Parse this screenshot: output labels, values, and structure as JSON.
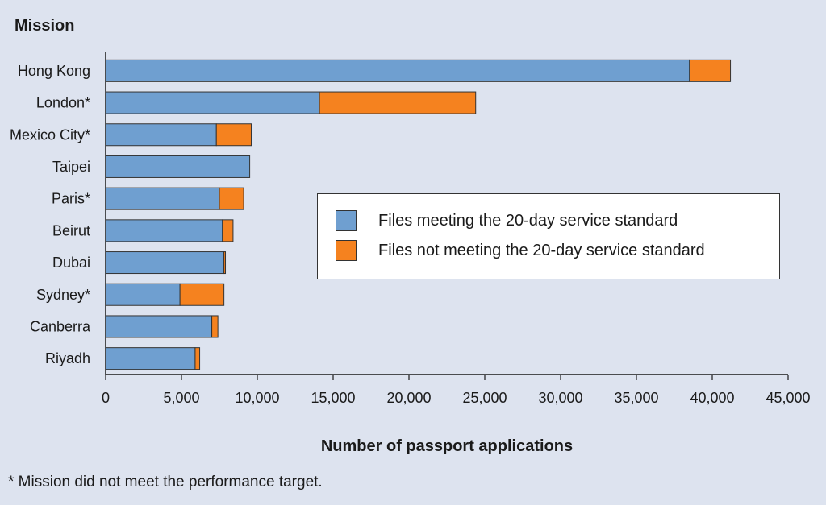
{
  "chart_data": {
    "type": "bar",
    "orientation": "horizontal",
    "stacked": true,
    "ylabel": "Mission",
    "xlabel": "Number of passport applications",
    "xlim": [
      0,
      45000
    ],
    "xticks": [
      0,
      5000,
      10000,
      15000,
      20000,
      25000,
      30000,
      35000,
      40000,
      45000
    ],
    "xtick_labels": [
      "0",
      "5,000",
      "10,000",
      "15,000",
      "20,000",
      "25,000",
      "30,000",
      "35,000",
      "40,000",
      "45,000"
    ],
    "categories": [
      "Hong Kong",
      "London*",
      "Mexico City*",
      "Taipei",
      "Paris*",
      "Beirut",
      "Dubai",
      "Sydney*",
      "Canberra",
      "Riyadh"
    ],
    "series": [
      {
        "name": "Files meeting the 20-day service standard",
        "color": "#6f9fd0",
        "values": [
          38500,
          14100,
          7300,
          9500,
          7500,
          7700,
          7800,
          4900,
          7000,
          5900
        ]
      },
      {
        "name": "Files not meeting the 20-day service standard",
        "color": "#f5821f",
        "values": [
          2700,
          10300,
          2300,
          0,
          1600,
          700,
          100,
          2900,
          400,
          300
        ]
      }
    ],
    "grid": false,
    "legend_position": "right-center"
  },
  "footnote": "* Mission did not meet the performance target."
}
